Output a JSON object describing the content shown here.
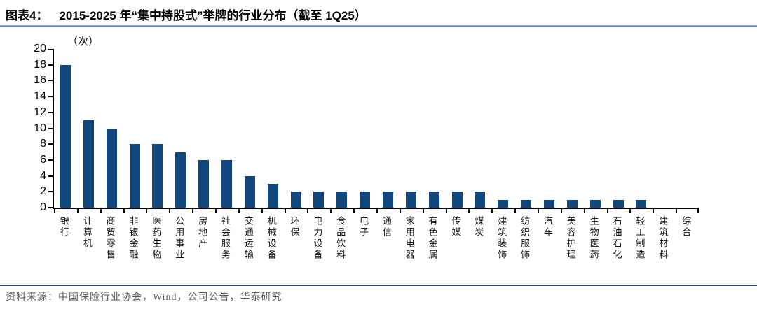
{
  "header": {
    "prefix": "图表4：",
    "title": "2015-2025 年“集中持股式”举牌的行业分布（截至 1Q25）"
  },
  "colors": {
    "bar": "#12477e",
    "axis": "#000000",
    "title_rule_top": "#a3b3c6",
    "title_rule_bottom": "#3c5f8a",
    "footer_rule": "#2b4a7c",
    "footer_text": "#595959"
  },
  "chart_data": {
    "type": "bar",
    "title": "2015-2025 年“集中持股式”举牌的行业分布（截至 1Q25）",
    "unit": "（次）",
    "categories": [
      "银行",
      "计算机",
      "商贸零售",
      "非银金融",
      "医药生物",
      "公用事业",
      "房地产",
      "社会服务",
      "交通运输",
      "机械设备",
      "环保",
      "电力设备",
      "食品饮料",
      "电子",
      "通信",
      "家用电器",
      "有色金属",
      "传媒",
      "煤炭",
      "建筑装饰",
      "纺织服饰",
      "汽车",
      "美容护理",
      "生物医药",
      "石油石化",
      "轻工制造",
      "建筑材料",
      "综合"
    ],
    "values": [
      18,
      11,
      10,
      8,
      8,
      7,
      6,
      6,
      4,
      3,
      2,
      2,
      2,
      2,
      2,
      2,
      2,
      2,
      2,
      1,
      1,
      1,
      1,
      1,
      1,
      1,
      0,
      0
    ],
    "xlabel": "",
    "ylabel": "",
    "ylim": [
      0,
      20
    ],
    "ytick_step": 2,
    "grid": false,
    "legend": false
  },
  "footer": {
    "source": "资料来源：中国保险行业协会，Wind，公司公告，华泰研究"
  }
}
